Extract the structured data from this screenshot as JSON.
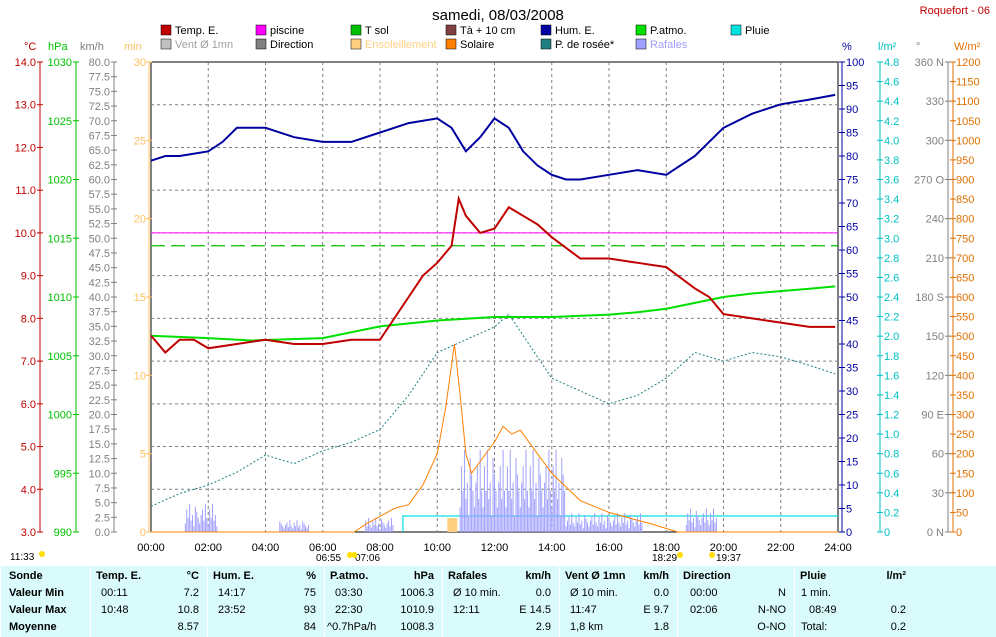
{
  "title": "samedi, 08/03/2008",
  "station": "Roquefort - 06",
  "legend": [
    {
      "label": "Temp. E.",
      "color": "#c00000"
    },
    {
      "label": "piscine",
      "color": "#ff00ff"
    },
    {
      "label": "T sol",
      "color": "#00c000"
    },
    {
      "label": "Tà + 10 cm",
      "color": "#804040"
    },
    {
      "label": "Hum. E.",
      "color": "#0000a0"
    },
    {
      "label": "P.atmo.",
      "color": "#00e000"
    },
    {
      "label": "Pluie",
      "color": "#00e0e0"
    },
    {
      "label": "Vent Ø 1mn",
      "color": "#c0c0c0"
    },
    {
      "label": "Direction",
      "color": "#808080"
    },
    {
      "label": "Ensoleillement",
      "color": "#ffd080"
    },
    {
      "label": "Solaire",
      "color": "#ff8000"
    },
    {
      "label": "P. de rosée*",
      "color": "#208080"
    },
    {
      "label": "Rafales",
      "color": "#a0a0ff"
    }
  ],
  "units": {
    "temp": "°C",
    "press": "hPa",
    "wind": "km/h",
    "min": "min",
    "hum": "%",
    "rain": "l/m²",
    "dir": "°",
    "solar": "W/m²"
  },
  "axes": {
    "temp": [
      "14.0",
      "13.0",
      "12.0",
      "11.0",
      "10.0",
      "9.0",
      "8.0",
      "7.0",
      "6.0",
      "5.0",
      "4.0",
      "3.0"
    ],
    "press": [
      "1030",
      "1025",
      "1020",
      "1015",
      "1010",
      "1005",
      "1000",
      "995",
      "990"
    ],
    "wind": [
      "80.0",
      "77.5",
      "75.0",
      "72.5",
      "70.0",
      "67.5",
      "65.0",
      "62.5",
      "60.0",
      "57.5",
      "55.0",
      "52.5",
      "50.0",
      "47.5",
      "45.0",
      "42.5",
      "40.0",
      "37.5",
      "35.0",
      "32.5",
      "30.0",
      "27.5",
      "25.0",
      "22.5",
      "20.0",
      "17.5",
      "15.0",
      "12.5",
      "10.0",
      "7.5",
      "5.0",
      "2.5",
      "0.0"
    ],
    "min": [
      "30",
      "25",
      "20",
      "15",
      "10",
      "5",
      "0"
    ],
    "hum": [
      "100",
      "95",
      "90",
      "85",
      "80",
      "75",
      "70",
      "65",
      "60",
      "55",
      "50",
      "45",
      "40",
      "35",
      "30",
      "25",
      "20",
      "15",
      "10",
      "5",
      "0"
    ],
    "rain": [
      "4.8",
      "4.6",
      "4.4",
      "4.2",
      "4.0",
      "3.8",
      "3.6",
      "3.4",
      "3.2",
      "3.0",
      "2.8",
      "2.6",
      "2.4",
      "2.2",
      "2.0",
      "1.8",
      "1.6",
      "1.4",
      "1.2",
      "1.0",
      "0.8",
      "0.6",
      "0.4",
      "0.2",
      "0"
    ],
    "dir": [
      "360 N",
      "330",
      "300",
      "270 O",
      "240",
      "210",
      "180 S",
      "150",
      "120",
      "90 E",
      "60",
      "30",
      "0 N"
    ],
    "solar": [
      "1200",
      "1150",
      "1100",
      "1050",
      "1000",
      "950",
      "900",
      "850",
      "800",
      "750",
      "700",
      "650",
      "600",
      "550",
      "500",
      "450",
      "400",
      "350",
      "300",
      "250",
      "200",
      "150",
      "100",
      "50",
      "0"
    ],
    "time": [
      "00:00",
      "02:00",
      "04:00",
      "06:00",
      "08:00",
      "10:00",
      "12:00",
      "14:00",
      "16:00",
      "18:00",
      "20:00",
      "22:00",
      "24:00"
    ]
  },
  "sun": {
    "moonrise": "11:33",
    "sunrise": "06:55",
    "sunrise2": "07:06",
    "sunset": "18:29",
    "sunset2": "19:37"
  },
  "chart_data": {
    "type": "line",
    "x_unit": "hour",
    "x_range": [
      0,
      24
    ],
    "series": [
      {
        "name": "Temp. E.",
        "axis": "°C",
        "color": "#c00000",
        "x": [
          0,
          0.5,
          1,
          1.5,
          2,
          3,
          4,
          5,
          6,
          7,
          7.6,
          8,
          9,
          9.5,
          10,
          10.5,
          10.75,
          11,
          11.5,
          12,
          12.5,
          13,
          13.5,
          14,
          15,
          16,
          17,
          18,
          19,
          19.5,
          20,
          21,
          22,
          23,
          23.9
        ],
        "y": [
          7.6,
          7.2,
          7.5,
          7.5,
          7.3,
          7.4,
          7.5,
          7.4,
          7.4,
          7.5,
          7.5,
          7.5,
          8.5,
          9.0,
          9.3,
          9.7,
          10.8,
          10.4,
          10.0,
          10.1,
          10.6,
          10.4,
          10.2,
          9.9,
          9.4,
          9.4,
          9.3,
          9.2,
          8.7,
          8.5,
          8.1,
          8.0,
          7.9,
          7.8,
          7.8
        ]
      },
      {
        "name": "Hum. E.",
        "axis": "%",
        "color": "#0000a0",
        "x": [
          0,
          0.5,
          1,
          2,
          2.5,
          3,
          4,
          5,
          6,
          7,
          8,
          9,
          10,
          10.5,
          11,
          11.5,
          12,
          12.5,
          13,
          13.5,
          14,
          14.5,
          15,
          16,
          17,
          18,
          19,
          20,
          21,
          22,
          23,
          23.9
        ],
        "y": [
          79,
          80,
          80,
          81,
          83,
          86,
          86,
          84,
          83,
          83,
          85,
          87,
          88,
          86,
          81,
          84,
          88,
          86,
          81,
          78,
          76,
          75,
          75,
          76,
          77,
          76,
          80,
          86,
          89,
          91,
          92,
          93
        ]
      },
      {
        "name": "P.atmo.",
        "axis": "hPa",
        "color": "#00e000",
        "x": [
          0,
          2,
          3.5,
          6,
          8,
          10,
          12,
          14,
          16,
          17,
          18,
          19,
          20,
          21,
          22,
          23,
          23.9
        ],
        "y": [
          1006.7,
          1006.5,
          1006.3,
          1006.5,
          1007.5,
          1008.0,
          1008.3,
          1008.3,
          1008.5,
          1008.7,
          1009.0,
          1009.5,
          1010.0,
          1010.3,
          1010.5,
          1010.7,
          1010.9
        ]
      },
      {
        "name": "P. de rosée*",
        "axis": "°C",
        "color": "#208080",
        "x": [
          0,
          1,
          2,
          3,
          4,
          5,
          6,
          7,
          8,
          9,
          10,
          11,
          12,
          12.5,
          13,
          14,
          15,
          16,
          17,
          18,
          19,
          20,
          21,
          22,
          23,
          23.9
        ],
        "y": [
          3.6,
          3.9,
          4.1,
          4.4,
          4.8,
          4.6,
          4.9,
          5.1,
          5.4,
          6.2,
          7.2,
          7.5,
          7.8,
          8.1,
          7.6,
          6.6,
          6.3,
          6.0,
          6.2,
          6.6,
          7.2,
          7.0,
          7.2,
          7.1,
          6.9,
          6.7
        ]
      },
      {
        "name": "Solaire",
        "axis": "W/m²",
        "color": "#ff8000",
        "x": [
          0,
          7.1,
          7.5,
          8,
          8.5,
          9,
          9.5,
          10,
          10.3,
          10.6,
          10.8,
          11,
          11.2,
          11.5,
          12,
          12.3,
          12.6,
          12.9,
          13.2,
          13.5,
          14,
          15,
          16,
          17,
          17.5,
          18.4,
          24
        ],
        "y": [
          0,
          0,
          20,
          40,
          60,
          70,
          120,
          200,
          320,
          480,
          350,
          200,
          150,
          180,
          230,
          270,
          250,
          260,
          230,
          200,
          150,
          80,
          50,
          30,
          20,
          0,
          0
        ]
      },
      {
        "name": "piscine",
        "axis": "°C",
        "color": "#ff00ff",
        "x": [
          0,
          24
        ],
        "y": [
          10.0,
          10.0
        ]
      },
      {
        "name": "T sol",
        "axis": "°C",
        "color": "#00c000",
        "x": [
          0,
          24
        ],
        "y": [
          9.7,
          9.7
        ]
      }
    ]
  },
  "summary": {
    "header": {
      "sonde": "Sonde",
      "temp": "Temp. E.",
      "temp_u": "°C",
      "hum": "Hum. E.",
      "hum_u": "%",
      "press": "P.atmo.",
      "press_u": "hPa",
      "raf": "Rafales",
      "raf_u": "km/h",
      "vent": "Vent Ø 1mn",
      "vent_u": "km/h",
      "dir": "Direction",
      "pluie": "Pluie",
      "pluie_u": "l/m²"
    },
    "rows": [
      {
        "label": "Valeur Min",
        "temp_t": "00:11",
        "temp_v": "7.2",
        "hum_t": "14:17",
        "hum_v": "75",
        "press_t": "03:30",
        "press_v": "1006.3",
        "raf_t": "Ø 10 min.",
        "raf_v": "0.0",
        "vent_t": "Ø 10 min.",
        "vent_v": "0.0",
        "dir_t": "00:00",
        "dir_v": "N",
        "pluie_t": "1 min.",
        "pluie_v": ""
      },
      {
        "label": "Valeur Max",
        "temp_t": "10:48",
        "temp_v": "10.8",
        "hum_t": "23:52",
        "hum_v": "93",
        "press_t": "22:30",
        "press_v": "1010.9",
        "raf_t": "12:11",
        "raf_v": "E 14.5",
        "vent_t": "11:47",
        "vent_v": "E 9.7",
        "dir_t": "02:06",
        "dir_v": "N-NO",
        "pluie_t": "08:49",
        "pluie_v": "0.2"
      },
      {
        "label": "Moyenne",
        "temp_t": "",
        "temp_v": "8.57",
        "hum_t": "",
        "hum_v": "84",
        "press_t": "^0.7hPa/h",
        "press_v": "1008.3",
        "raf_t": "",
        "raf_v": "2.9",
        "vent_t": "1,8 km",
        "vent_v": "1.8",
        "dir_t": "",
        "dir_v": "O-NO",
        "pluie_t": "Total:",
        "pluie_v": "0.2"
      }
    ]
  }
}
